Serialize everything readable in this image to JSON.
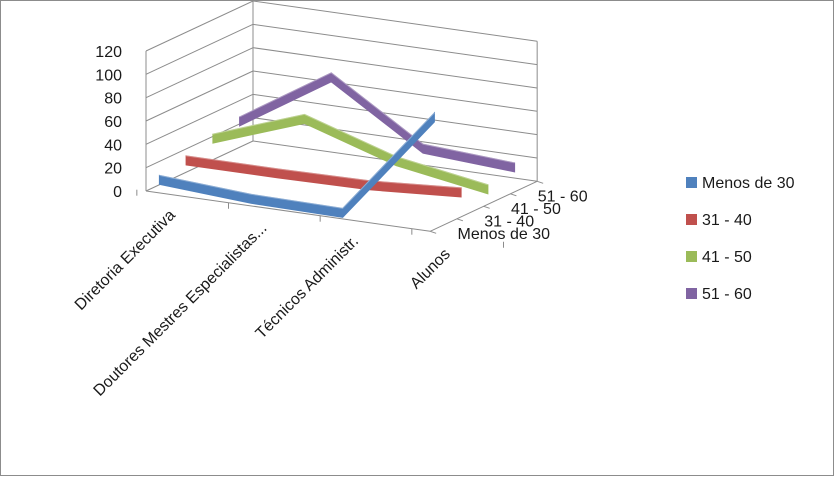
{
  "chart_data": {
    "type": "line",
    "variant": "3d-line",
    "categories": [
      "Diretoria Executiva",
      "Doutores Mestres Especialistas...",
      "Técnicos Administr.",
      "Alunos"
    ],
    "series": [
      {
        "name": "Menos de 30",
        "color": "#4F81BD",
        "values": [
          8,
          3,
          2,
          95
        ]
      },
      {
        "name": "31 - 40",
        "color": "#C0504D",
        "values": [
          14,
          14,
          15,
          20
        ]
      },
      {
        "name": "41 - 50",
        "color": "#9BBB59",
        "values": [
          22,
          50,
          25,
          12
        ]
      },
      {
        "name": "51 - 60",
        "color": "#8064A2",
        "values": [
          26,
          75,
          25,
          20
        ]
      }
    ],
    "yticks": [
      0,
      20,
      40,
      60,
      80,
      100,
      120
    ],
    "ylim": [
      0,
      120
    ],
    "grid": true,
    "legend": "right"
  }
}
